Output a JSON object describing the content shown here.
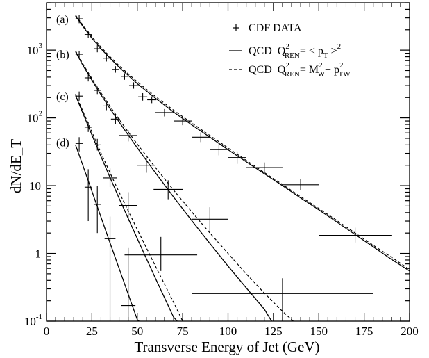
{
  "chart_data": {
    "type": "scatter",
    "xlabel": "Transverse Energy of Jet (GeV)",
    "ylabel": "dN/dE_T",
    "xlim": [
      0,
      200
    ],
    "ylim": [
      0.1,
      5000
    ],
    "yscale": "log",
    "x_ticks": [
      "0",
      "25",
      "50",
      "75",
      "100",
      "125",
      "150",
      "175",
      "200"
    ],
    "y_ticks": [
      {
        "value": 0.1,
        "base": "10",
        "exp": "-1"
      },
      {
        "value": 1,
        "base": "1",
        "exp": ""
      },
      {
        "value": 10,
        "base": "10",
        "exp": ""
      },
      {
        "value": 100,
        "base": "10",
        "exp": "2"
      },
      {
        "value": 1000,
        "base": "10",
        "exp": "3"
      }
    ],
    "legend": {
      "placement": "top-right",
      "entries": [
        {
          "marker": "+",
          "text": "CDF DATA"
        },
        {
          "line": "solid",
          "text": "QCD",
          "formula": [
            "Q",
            "2",
            "REN",
            "= < p",
            "T",
            " >",
            "2"
          ]
        },
        {
          "line": "dashed",
          "text": "QCD",
          "formula": [
            "Q",
            "2",
            "REN",
            "= M",
            "2",
            "W",
            "+ p",
            "2",
            "TW"
          ]
        }
      ]
    },
    "series": [
      {
        "name": "(a)",
        "label_x": 10,
        "label_y": 2900,
        "points": [
          {
            "x": 18,
            "y": 2900,
            "xerr": 2,
            "ylo": 2500,
            "yhi": 3300
          },
          {
            "x": 23,
            "y": 1700,
            "xerr": 2,
            "ylo": 1500,
            "yhi": 1900
          },
          {
            "x": 28,
            "y": 1050,
            "xerr": 2,
            "ylo": 930,
            "yhi": 1180
          },
          {
            "x": 33,
            "y": 760,
            "xerr": 2,
            "ylo": 680,
            "yhi": 850
          },
          {
            "x": 38,
            "y": 520,
            "xerr": 2,
            "ylo": 465,
            "yhi": 580
          },
          {
            "x": 43,
            "y": 410,
            "xerr": 2,
            "ylo": 365,
            "yhi": 455
          },
          {
            "x": 48,
            "y": 300,
            "xerr": 2.5,
            "ylo": 270,
            "yhi": 335
          },
          {
            "x": 53,
            "y": 205,
            "xerr": 2.5,
            "ylo": 180,
            "yhi": 232
          },
          {
            "x": 58,
            "y": 185,
            "xerr": 2.5,
            "ylo": 165,
            "yhi": 208
          },
          {
            "x": 65,
            "y": 120,
            "xerr": 5,
            "ylo": 105,
            "yhi": 135
          },
          {
            "x": 75,
            "y": 90,
            "xerr": 5,
            "ylo": 78,
            "yhi": 103
          },
          {
            "x": 85,
            "y": 52,
            "xerr": 5,
            "ylo": 44,
            "yhi": 61
          },
          {
            "x": 95,
            "y": 34,
            "xerr": 5,
            "ylo": 28,
            "yhi": 41
          },
          {
            "x": 105,
            "y": 26,
            "xerr": 5,
            "ylo": 21,
            "yhi": 32
          },
          {
            "x": 120,
            "y": 18.5,
            "xerr": 10,
            "ylo": 15.5,
            "yhi": 22
          },
          {
            "x": 140,
            "y": 10.3,
            "xerr": 10,
            "ylo": 8.5,
            "yhi": 12.5
          },
          {
            "x": 170,
            "y": 1.85,
            "xerr": 20,
            "ylo": 1.45,
            "yhi": 2.4
          }
        ],
        "qcd_solid": [
          [
            16,
            3200
          ],
          [
            20,
            2250
          ],
          [
            25,
            1500
          ],
          [
            30,
            1050
          ],
          [
            35,
            760
          ],
          [
            40,
            560
          ],
          [
            50,
            320
          ],
          [
            60,
            195
          ],
          [
            70,
            122
          ],
          [
            80,
            79
          ],
          [
            90,
            52
          ],
          [
            100,
            34
          ],
          [
            110,
            22.5
          ],
          [
            120,
            15
          ],
          [
            130,
            10
          ],
          [
            140,
            6.6
          ],
          [
            150,
            4.4
          ],
          [
            160,
            2.9
          ],
          [
            170,
            1.9
          ],
          [
            180,
            1.25
          ],
          [
            190,
            0.82
          ],
          [
            200,
            0.55
          ]
        ],
        "qcd_dashed": [
          [
            16,
            3300
          ],
          [
            20,
            2350
          ],
          [
            25,
            1580
          ],
          [
            30,
            1110
          ],
          [
            35,
            800
          ],
          [
            40,
            590
          ],
          [
            50,
            340
          ],
          [
            60,
            207
          ],
          [
            70,
            130
          ],
          [
            80,
            84
          ],
          [
            90,
            55
          ],
          [
            100,
            36
          ],
          [
            110,
            23.6
          ],
          [
            120,
            15.6
          ],
          [
            130,
            10.4
          ],
          [
            140,
            6.9
          ],
          [
            150,
            4.6
          ],
          [
            160,
            3.05
          ],
          [
            170,
            2.0
          ],
          [
            180,
            1.32
          ],
          [
            190,
            0.88
          ],
          [
            200,
            0.58
          ]
        ]
      },
      {
        "name": "(b)",
        "label_x": 10,
        "label_y": 880,
        "points": [
          {
            "x": 18,
            "y": 870,
            "xerr": 2,
            "ylo": 760,
            "yhi": 980
          },
          {
            "x": 23,
            "y": 390,
            "xerr": 2,
            "ylo": 345,
            "yhi": 440
          },
          {
            "x": 28,
            "y": 255,
            "xerr": 2,
            "ylo": 225,
            "yhi": 290
          },
          {
            "x": 33,
            "y": 150,
            "xerr": 2,
            "ylo": 130,
            "yhi": 172
          },
          {
            "x": 38,
            "y": 96,
            "xerr": 2.5,
            "ylo": 82,
            "yhi": 112
          },
          {
            "x": 45,
            "y": 55,
            "xerr": 5,
            "ylo": 45,
            "yhi": 66
          },
          {
            "x": 55,
            "y": 20,
            "xerr": 5,
            "ylo": 15.5,
            "yhi": 26
          },
          {
            "x": 67,
            "y": 8.8,
            "xerr": 8,
            "ylo": 6.3,
            "yhi": 12
          },
          {
            "x": 90,
            "y": 3.2,
            "xerr": 10,
            "ylo": 2.0,
            "yhi": 4.8
          },
          {
            "x": 130,
            "y": 0.255,
            "xerr": 50,
            "ylo": 0.1,
            "yhi": 0.43
          }
        ],
        "qcd_solid": [
          [
            16,
            950
          ],
          [
            20,
            600
          ],
          [
            25,
            360
          ],
          [
            30,
            220
          ],
          [
            35,
            137
          ],
          [
            40,
            87
          ],
          [
            45,
            56
          ],
          [
            50,
            36
          ],
          [
            60,
            15.5
          ],
          [
            70,
            6.8
          ],
          [
            80,
            3.05
          ],
          [
            90,
            1.4
          ],
          [
            100,
            0.65
          ],
          [
            110,
            0.31
          ],
          [
            120,
            0.15
          ],
          [
            124,
            0.1
          ]
        ],
        "qcd_dashed": [
          [
            16,
            980
          ],
          [
            20,
            630
          ],
          [
            25,
            380
          ],
          [
            30,
            235
          ],
          [
            35,
            148
          ],
          [
            40,
            95
          ],
          [
            45,
            62
          ],
          [
            50,
            41
          ],
          [
            60,
            18.5
          ],
          [
            70,
            8.6
          ],
          [
            80,
            4.1
          ],
          [
            90,
            2.0
          ],
          [
            100,
            1.0
          ],
          [
            110,
            0.5
          ],
          [
            120,
            0.26
          ],
          [
            130,
            0.14
          ],
          [
            136,
            0.1
          ]
        ]
      },
      {
        "name": "(c)",
        "label_x": 10,
        "label_y": 210,
        "points": [
          {
            "x": 18,
            "y": 210,
            "xerr": 2,
            "ylo": 180,
            "yhi": 245
          },
          {
            "x": 23,
            "y": 73,
            "xerr": 2,
            "ylo": 62,
            "yhi": 86
          },
          {
            "x": 28,
            "y": 40,
            "xerr": 2,
            "ylo": 33,
            "yhi": 49
          },
          {
            "x": 35,
            "y": 13,
            "xerr": 4,
            "ylo": 9.5,
            "yhi": 18
          },
          {
            "x": 45,
            "y": 5.1,
            "xerr": 5,
            "ylo": 3.0,
            "yhi": 8.0
          },
          {
            "x": 63,
            "y": 0.95,
            "xerr": 20,
            "ylo": 0.55,
            "yhi": 1.75
          }
        ],
        "qcd_solid": [
          [
            16,
            215
          ],
          [
            20,
            118
          ],
          [
            25,
            56
          ],
          [
            30,
            27
          ],
          [
            35,
            13.2
          ],
          [
            40,
            6.5
          ],
          [
            50,
            1.65
          ],
          [
            60,
            0.43
          ],
          [
            70,
            0.115
          ],
          [
            72,
            0.1
          ]
        ],
        "qcd_dashed": [
          [
            16,
            225
          ],
          [
            20,
            126
          ],
          [
            25,
            62
          ],
          [
            30,
            30.5
          ],
          [
            35,
            15.5
          ],
          [
            40,
            8
          ],
          [
            50,
            2.25
          ],
          [
            60,
            0.65
          ],
          [
            70,
            0.19
          ],
          [
            75,
            0.1
          ]
        ]
      },
      {
        "name": "(d)",
        "label_x": 10,
        "label_y": 44,
        "points": [
          {
            "x": 18,
            "y": 42,
            "xerr": 2,
            "ylo": 32,
            "yhi": 52
          },
          {
            "x": 23,
            "y": 9.5,
            "xerr": 2,
            "ylo": 3.0,
            "yhi": 17.5
          },
          {
            "x": 28,
            "y": 5.3,
            "xerr": 2,
            "ylo": 2.0,
            "yhi": 10
          },
          {
            "x": 35,
            "y": 1.65,
            "xerr": 3,
            "ylo": 0.1,
            "yhi": 3.5
          },
          {
            "x": 45,
            "y": 0.17,
            "xerr": 4,
            "ylo": 0.1,
            "yhi": 1.2
          }
        ],
        "qcd_solid": [
          [
            16,
            40
          ],
          [
            20,
            20
          ],
          [
            25,
            8.3
          ],
          [
            30,
            3.45
          ],
          [
            35,
            1.43
          ],
          [
            40,
            0.6
          ],
          [
            45,
            0.25
          ],
          [
            50,
            0.105
          ],
          [
            51,
            0.1
          ]
        ]
      }
    ]
  }
}
